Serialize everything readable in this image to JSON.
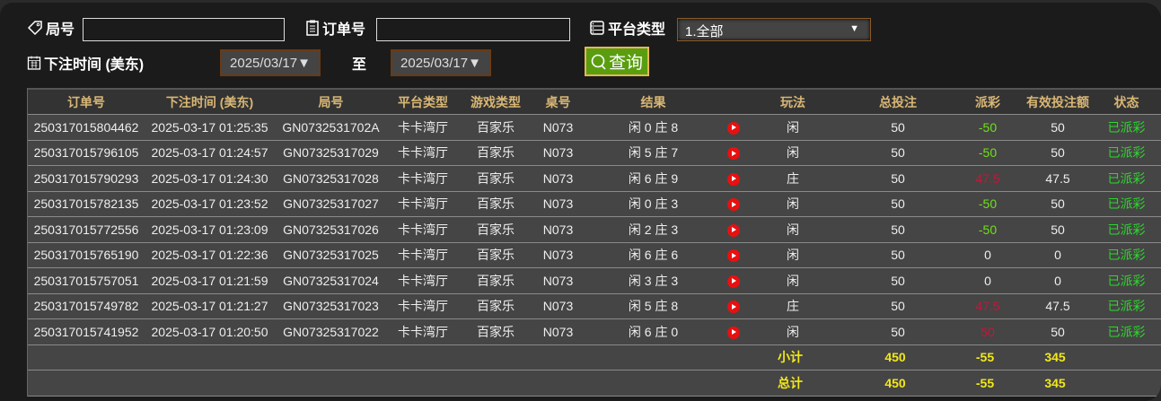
{
  "filters": {
    "round_label": "局号",
    "round_value": "",
    "order_label": "订单号",
    "order_value": "",
    "platform_label": "平台类型",
    "platform_value": "1.全部",
    "time_label": "下注时间 (美东)",
    "date_from": "2025/03/17▼",
    "to_label": "至",
    "date_to": "2025/03/17▼",
    "query_label": "查询"
  },
  "columns": [
    "订单号",
    "下注时间 (美东)",
    "局号",
    "平台类型",
    "游戏类型",
    "桌号",
    "结果",
    "",
    "玩法",
    "总投注",
    "派彩",
    "有效投注额",
    "状态"
  ],
  "rows": [
    [
      "250317015804462",
      "2025-03-17 01:25:35",
      "GN0732531702A",
      "卡卡湾厅",
      "百家乐",
      "N073",
      "闲 0 庄 8",
      "闲",
      "50",
      "-50",
      "50",
      "已派彩"
    ],
    [
      "250317015796105",
      "2025-03-17 01:24:57",
      "GN07325317029",
      "卡卡湾厅",
      "百家乐",
      "N073",
      "闲 5 庄 7",
      "闲",
      "50",
      "-50",
      "50",
      "已派彩"
    ],
    [
      "250317015790293",
      "2025-03-17 01:24:30",
      "GN07325317028",
      "卡卡湾厅",
      "百家乐",
      "N073",
      "闲 6 庄 9",
      "庄",
      "50",
      "47.5",
      "47.5",
      "已派彩"
    ],
    [
      "250317015782135",
      "2025-03-17 01:23:52",
      "GN07325317027",
      "卡卡湾厅",
      "百家乐",
      "N073",
      "闲 0 庄 3",
      "闲",
      "50",
      "-50",
      "50",
      "已派彩"
    ],
    [
      "250317015772556",
      "2025-03-17 01:23:09",
      "GN07325317026",
      "卡卡湾厅",
      "百家乐",
      "N073",
      "闲 2 庄 3",
      "闲",
      "50",
      "-50",
      "50",
      "已派彩"
    ],
    [
      "250317015765190",
      "2025-03-17 01:22:36",
      "GN07325317025",
      "卡卡湾厅",
      "百家乐",
      "N073",
      "闲 6 庄 6",
      "闲",
      "50",
      "0",
      "0",
      "已派彩"
    ],
    [
      "250317015757051",
      "2025-03-17 01:21:59",
      "GN07325317024",
      "卡卡湾厅",
      "百家乐",
      "N073",
      "闲 3 庄 3",
      "闲",
      "50",
      "0",
      "0",
      "已派彩"
    ],
    [
      "250317015749782",
      "2025-03-17 01:21:27",
      "GN07325317023",
      "卡卡湾厅",
      "百家乐",
      "N073",
      "闲 5 庄 8",
      "庄",
      "50",
      "47.5",
      "47.5",
      "已派彩"
    ],
    [
      "250317015741952",
      "2025-03-17 01:20:50",
      "GN07325317022",
      "卡卡湾厅",
      "百家乐",
      "N073",
      "闲 6 庄 0",
      "闲",
      "50",
      "50",
      "50",
      "已派彩"
    ]
  ],
  "subtotal": {
    "label": "小计",
    "total_bet": "450",
    "payout": "-55",
    "valid_bet": "345"
  },
  "grandtotal": {
    "label": "总计",
    "total_bet": "450",
    "payout": "-55",
    "valid_bet": "345"
  },
  "colors": {
    "status": "#2ed62e",
    "payout_negative": "#6fe01a",
    "payout_positive": "#c0183a",
    "totals": "#f2e81a",
    "query_button": "#5a9e10"
  }
}
